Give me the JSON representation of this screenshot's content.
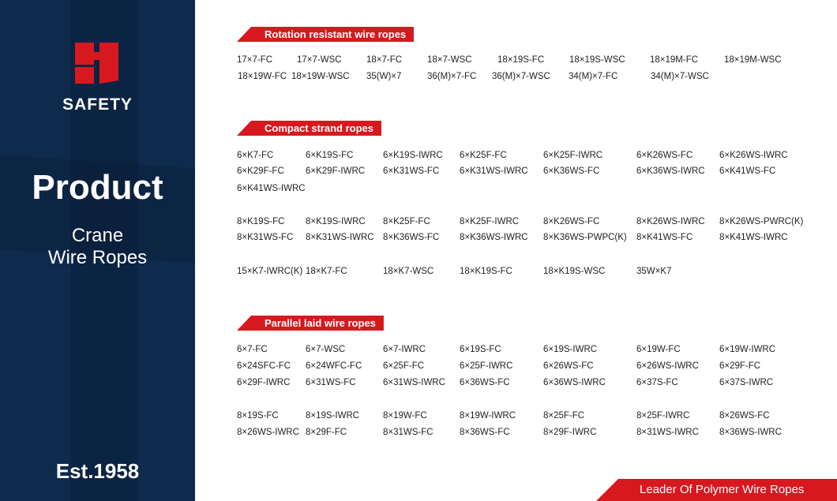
{
  "sidebar": {
    "brand": "SAFETY",
    "title": "Product",
    "subtitle_line1": "Crane",
    "subtitle_line2": "Wire Ropes",
    "established": "Est.1958",
    "logo_color": "#d7191f",
    "background": "#0e2a4d"
  },
  "sections": [
    {
      "title": "Rotation resistant wire ropes",
      "rows": [
        [
          "17×7-FC",
          "17×7-WSC",
          "18×7-FC",
          "18×7-WSC",
          "18×19S-FC",
          "18×19S-WSC",
          "18×19M-FC",
          "18×19M-WSC"
        ],
        [
          "18×19W-FC",
          "18×19W-WSC",
          "35(W)×7",
          "36(M)×7-FC",
          "36(M)×7-WSC",
          "34(M)×7-FC",
          "34(M)×7-WSC"
        ]
      ]
    },
    {
      "title": "Compact strand ropes",
      "rows": [
        [
          "6×K7-FC",
          "6×K19S-FC",
          "6×K19S-IWRC",
          "6×K25F-FC",
          "6×K25F-IWRC",
          "6×K26WS-FC",
          "6×K26WS-IWRC"
        ],
        [
          "6×K29F-FC",
          "6×K29F-IWRC",
          "6×K31WS-FC",
          "6×K31WS-IWRC",
          "6×K36WS-FC",
          "6×K36WS-IWRC",
          "6×K41WS-FC"
        ],
        [
          "6×K41WS-IWRC"
        ],
        [
          "8×K19S-FC",
          "8×K19S-IWRC",
          "8×K25F-FC",
          "8×K25F-IWRC",
          "8×K26WS-FC",
          "8×K26WS-IWRC",
          "8×K26WS-PWRC(K)"
        ],
        [
          "8×K31WS-FC",
          "8×K31WS-IWRC",
          "8×K36WS-FC",
          "8×K36WS-IWRC",
          "8×K36WS-PWPC(K)",
          "8×K41WS-FC",
          "8×K41WS-IWRC"
        ],
        [
          "15×K7-IWRC(K)",
          "18×K7-FC",
          "18×K7-WSC",
          "18×K19S-FC",
          "18×K19S-WSC",
          "35W×K7"
        ]
      ]
    },
    {
      "title": "Parallel laid wire ropes",
      "rows": [
        [
          "6×7-FC",
          "6×7-WSC",
          "6×7-IWRC",
          "6×19S-FC",
          "6×19S-IWRC",
          "6×19W-FC",
          "6×19W-IWRC"
        ],
        [
          "6×24SFC-FC",
          "6×24WFC-FC",
          "6×25F-FC",
          "6×25F-IWRC",
          "6×26WS-FC",
          "6×26WS-IWRC",
          "6×29F-FC"
        ],
        [
          "6×29F-IWRC",
          "6×31WS-FC",
          "6×31WS-IWRC",
          "6×36WS-FC",
          "6×36WS-IWRC",
          "6×37S-FC",
          "6×37S-IWRC"
        ],
        [
          "8×19S-FC",
          "8×19S-IWRC",
          "8×19W-FC",
          "8×19W-IWRC",
          "8×25F-FC",
          "8×25F-IWRC",
          "8×26WS-FC"
        ],
        [
          "8×26WS-IWRC",
          "8×29F-FC",
          "8×31WS-FC",
          "8×36WS-FC",
          "8×29F-IWRC",
          "8×31WS-IWRC",
          "8×36WS-IWRC"
        ]
      ]
    }
  ],
  "footer": {
    "tagline": "Leader Of Polymer Wire Ropes"
  },
  "accent": "#d7191f"
}
